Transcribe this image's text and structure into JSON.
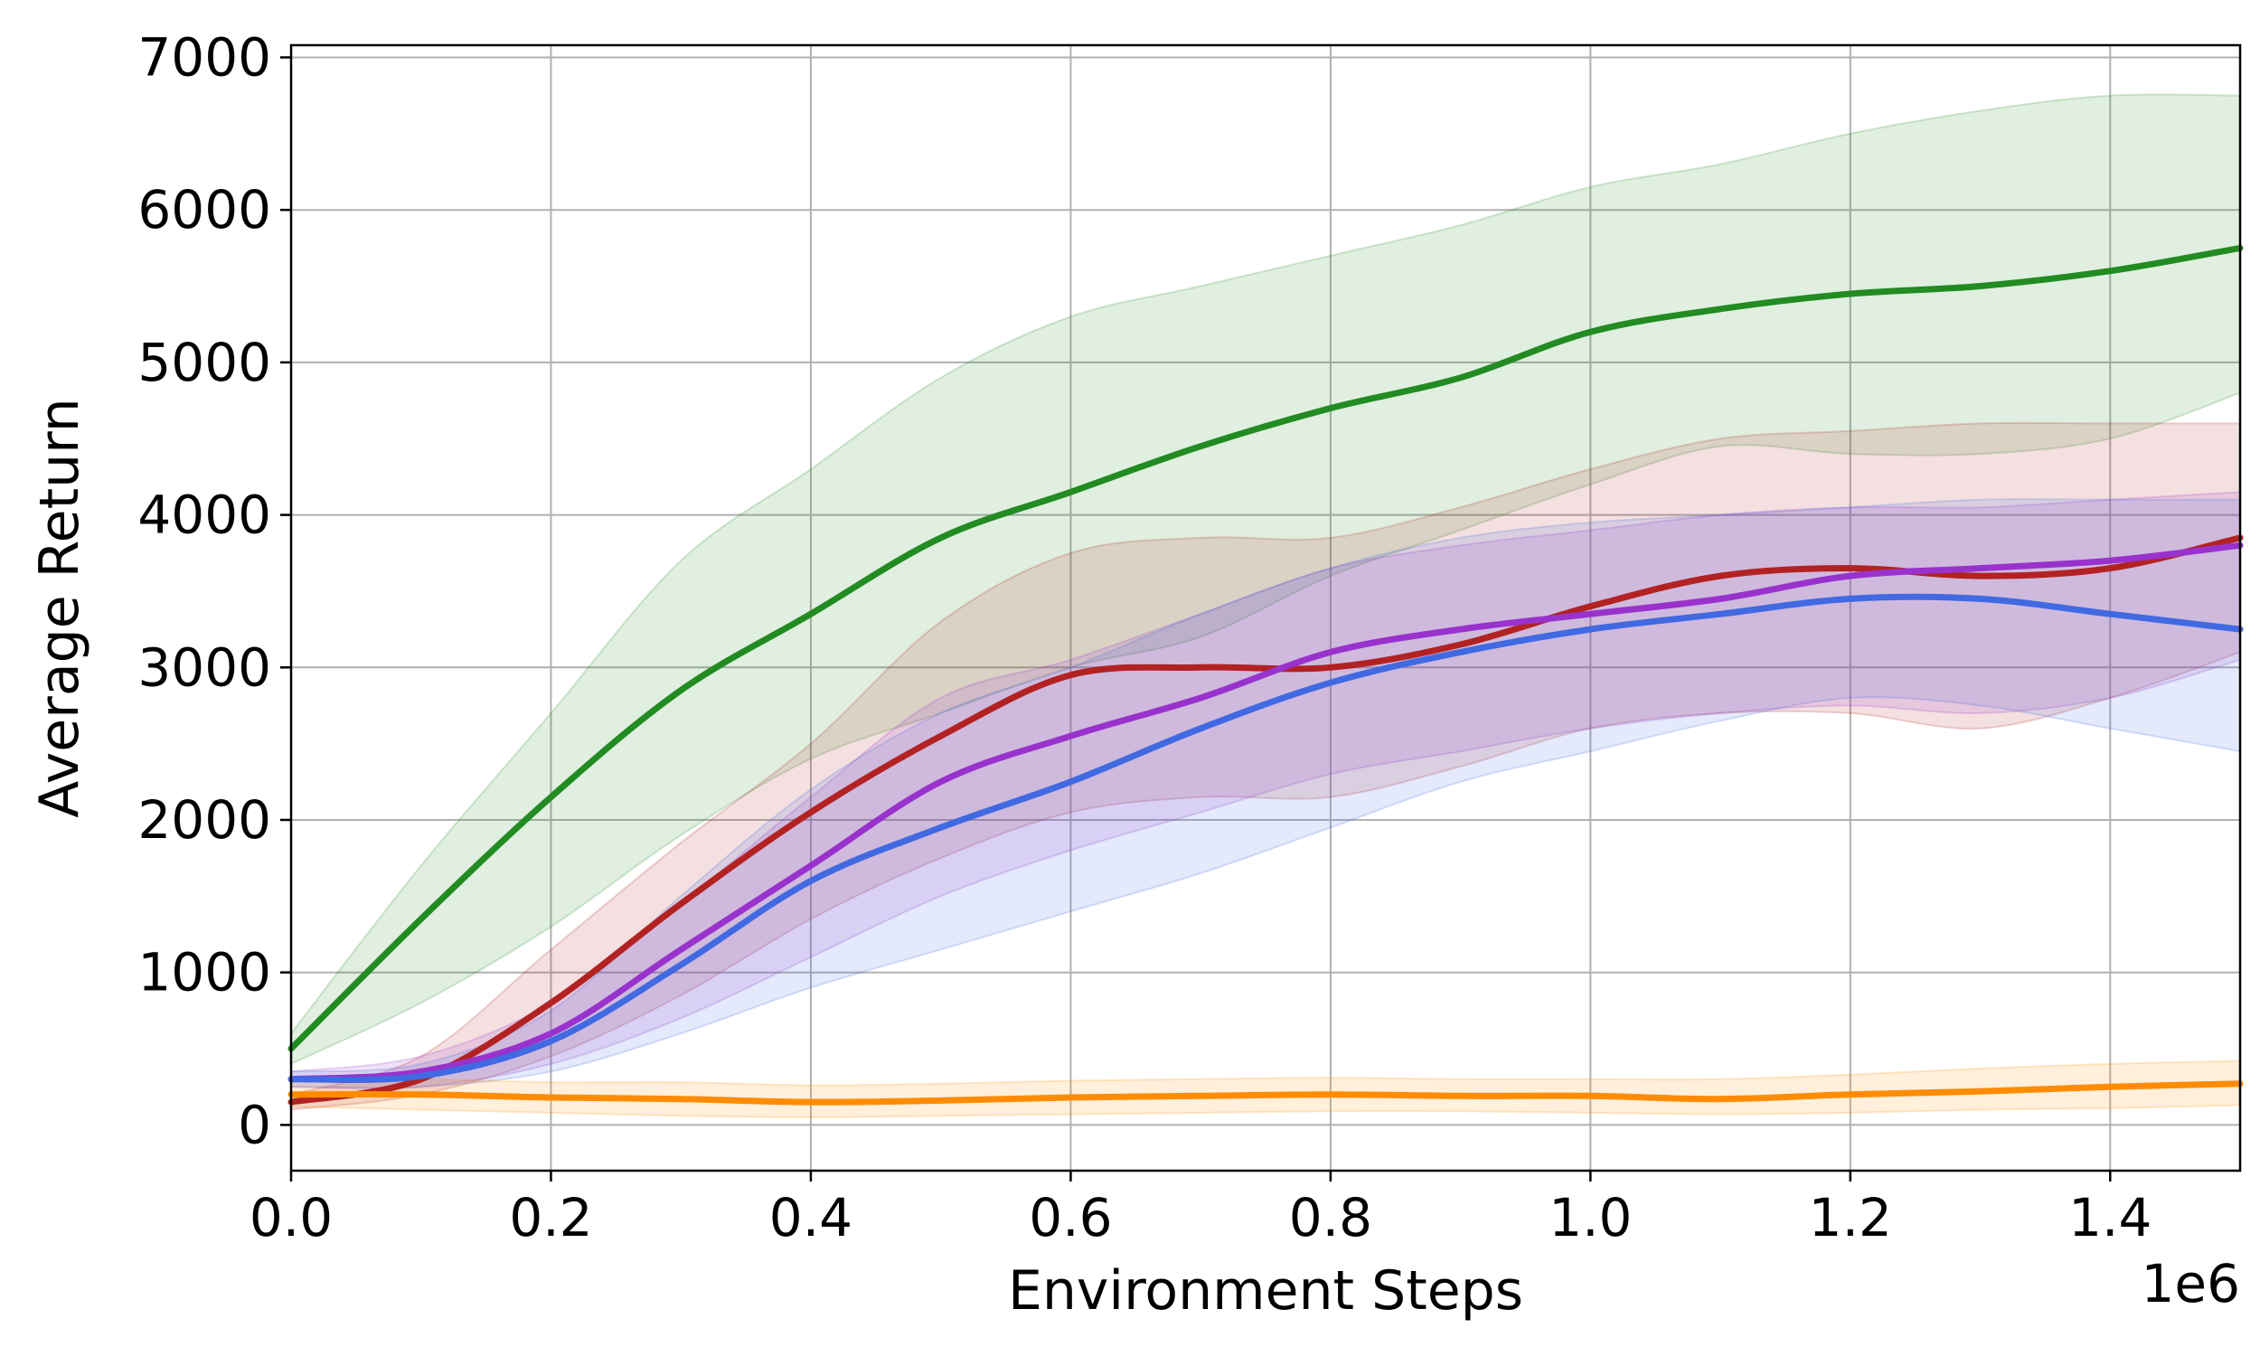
{
  "chart_data": {
    "type": "line",
    "xlabel": "Environment Steps",
    "ylabel": "Average Return",
    "x_offset_label": "1e6",
    "xlim": [
      0,
      1.5
    ],
    "ylim": [
      -300,
      7080
    ],
    "x_ticks": [
      0.0,
      0.2,
      0.4,
      0.6,
      0.8,
      1.0,
      1.2,
      1.4
    ],
    "x_tick_labels": [
      "0.0",
      "0.2",
      "0.4",
      "0.6",
      "0.8",
      "1.0",
      "1.2",
      "1.4"
    ],
    "y_ticks": [
      0,
      1000,
      2000,
      3000,
      4000,
      5000,
      6000,
      7000
    ],
    "y_tick_labels": [
      "0",
      "1000",
      "2000",
      "3000",
      "4000",
      "5000",
      "6000",
      "7000"
    ],
    "grid": true,
    "x": [
      0.0,
      0.1,
      0.2,
      0.3,
      0.4,
      0.5,
      0.6,
      0.7,
      0.8,
      0.9,
      1.0,
      1.1,
      1.2,
      1.3,
      1.4,
      1.5
    ],
    "series": [
      {
        "color": "#228B22",
        "values": [
          500,
          1350,
          2150,
          2850,
          3350,
          3850,
          4150,
          4450,
          4700,
          4900,
          5200,
          5350,
          5450,
          5500,
          5600,
          5750
        ],
        "lower": [
          400,
          800,
          1300,
          1900,
          2400,
          2700,
          3000,
          3200,
          3600,
          3900,
          4200,
          4450,
          4400,
          4400,
          4500,
          4800
        ],
        "upper": [
          600,
          1700,
          2700,
          3700,
          4300,
          4900,
          5300,
          5500,
          5700,
          5900,
          6150,
          6300,
          6500,
          6650,
          6750,
          6750
        ]
      },
      {
        "color": "#B22222",
        "values": [
          150,
          300,
          800,
          1450,
          2050,
          2550,
          2950,
          3000,
          3000,
          3150,
          3400,
          3600,
          3650,
          3600,
          3650,
          3850
        ],
        "lower": [
          100,
          200,
          450,
          850,
          1350,
          1750,
          2050,
          2150,
          2150,
          2350,
          2600,
          2700,
          2700,
          2600,
          2800,
          3100
        ],
        "upper": [
          200,
          450,
          1150,
          1850,
          2500,
          3300,
          3750,
          3850,
          3850,
          4050,
          4300,
          4500,
          4550,
          4600,
          4600,
          4600
        ]
      },
      {
        "color": "#9932CC",
        "values": [
          300,
          350,
          600,
          1150,
          1700,
          2250,
          2550,
          2800,
          3100,
          3250,
          3350,
          3450,
          3600,
          3650,
          3700,
          3800
        ],
        "lower": [
          250,
          250,
          400,
          700,
          1100,
          1500,
          1800,
          2050,
          2300,
          2450,
          2600,
          2700,
          2750,
          2700,
          2800,
          3050
        ],
        "upper": [
          350,
          450,
          800,
          1450,
          2150,
          2800,
          3050,
          3350,
          3650,
          3800,
          3900,
          4000,
          4050,
          4050,
          4100,
          4150
        ]
      },
      {
        "color": "#4169E1",
        "values": [
          300,
          320,
          550,
          1050,
          1600,
          1950,
          2250,
          2600,
          2900,
          3100,
          3250,
          3350,
          3450,
          3450,
          3350,
          3250
        ],
        "lower": [
          250,
          250,
          350,
          600,
          900,
          1150,
          1400,
          1650,
          1950,
          2250,
          2450,
          2650,
          2800,
          2750,
          2600,
          2450
        ],
        "upper": [
          350,
          400,
          750,
          1500,
          2200,
          2700,
          3000,
          3350,
          3650,
          3850,
          3950,
          4000,
          4050,
          4100,
          4100,
          4100
        ]
      },
      {
        "color": "#FF8C00",
        "values": [
          200,
          200,
          180,
          170,
          150,
          160,
          180,
          190,
          200,
          190,
          190,
          170,
          200,
          220,
          250,
          270
        ],
        "lower": [
          120,
          100,
          80,
          60,
          50,
          60,
          70,
          80,
          90,
          90,
          80,
          70,
          80,
          100,
          110,
          130
        ],
        "upper": [
          300,
          300,
          280,
          280,
          260,
          270,
          290,
          300,
          310,
          300,
          300,
          300,
          330,
          370,
          400,
          420
        ]
      }
    ]
  }
}
